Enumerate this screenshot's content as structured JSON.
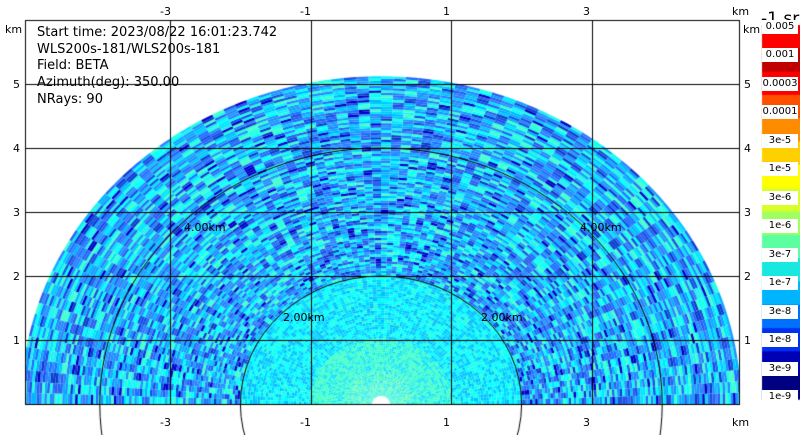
{
  "info": {
    "start_time": "Start time: 2023/08/22 16:01:23.742",
    "instrument": "WLS200s-181/WLS200s-181",
    "field": "Field: BETA",
    "azimuth": "Azimuth(deg): 350.00",
    "nrays": "NRays: 90"
  },
  "axes": {
    "unit": "km",
    "x_ticks": [
      "-3",
      "-1",
      "1",
      "3"
    ],
    "y_ticks": [
      "5",
      "4",
      "3",
      "2",
      "1"
    ]
  },
  "rings": {
    "inner": "2.00km",
    "outer": "4.00km"
  },
  "colorbar": {
    "unit": "-1 sr",
    "labels": [
      "0.005",
      "0.001",
      "0.0003",
      "0.0001",
      "3e-5",
      "1e-5",
      "3e-6",
      "1e-6",
      "3e-7",
      "1e-7",
      "3e-8",
      "1e-8",
      "3e-9",
      "1e-9"
    ],
    "colors": [
      "#ff0000",
      "#c00000",
      "#ff0000",
      "#ff5000",
      "#ff8c00",
      "#ffd000",
      "#ffff00",
      "#d8ff28",
      "#a0ff60",
      "#5cffa0",
      "#18e8e0",
      "#00b4ff",
      "#0070ff",
      "#0030f0",
      "#0000b4",
      "#000080"
    ]
  }
}
